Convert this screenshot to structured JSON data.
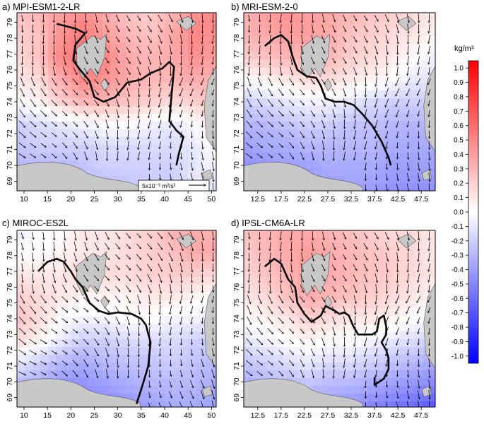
{
  "chart_data": {
    "type": "heatmap",
    "colorbar": {
      "unit_label": "kg/m³",
      "ticks": [
        "1.0",
        "0.9",
        "0.8",
        "0.7",
        "0.6",
        "0.5",
        "0.4",
        "0.3",
        "0.2",
        "0.1",
        "0.0",
        "-0.1",
        "-0.2",
        "-0.3",
        "-0.4",
        "-0.5",
        "-0.6",
        "-0.7",
        "-0.8",
        "-0.9",
        "-1.0"
      ],
      "range": [
        -1.05,
        1.05
      ],
      "colors": {
        "low": "#0000ff",
        "mid": "#ffffff",
        "high": "#ff0000"
      }
    },
    "panels": [
      {
        "title": "a)  MPI-ESM1-2-LR",
        "xticks": [
          "10",
          "15",
          "20",
          "25",
          "30",
          "35",
          "40",
          "45",
          "50"
        ],
        "yticks": [
          "79",
          "78",
          "77",
          "76",
          "75",
          "74",
          "73",
          "72",
          "71",
          "70",
          "69"
        ],
        "xlim": [
          8.5,
          51
        ],
        "ylim": [
          68.4,
          79.6
        ],
        "tilt": -0.25,
        "reference_vector": "5x10⁻³ m²/s²",
        "front_line": [
          [
            17,
            78.9
          ],
          [
            21,
            78.6
          ],
          [
            23,
            78.3
          ],
          [
            21,
            77.6
          ],
          [
            20.5,
            76.6
          ],
          [
            22,
            76
          ],
          [
            24,
            75.3
          ],
          [
            25,
            74.3
          ],
          [
            27,
            74
          ],
          [
            29.5,
            74.3
          ],
          [
            32,
            75.2
          ],
          [
            35,
            75.4
          ],
          [
            37,
            75.8
          ],
          [
            39.5,
            76.1
          ],
          [
            41,
            76.5
          ],
          [
            42,
            76.2
          ],
          [
            41.5,
            74.5
          ],
          [
            41,
            72.8
          ],
          [
            42.5,
            72.2
          ],
          [
            44,
            71.8
          ],
          [
            43,
            70.7
          ],
          [
            42.5,
            70
          ]
        ],
        "density_field": [
          [
            0.25,
            0.3,
            0.4,
            0.45,
            0.35,
            0.25,
            0.2,
            0.3,
            0.45,
            0.5
          ],
          [
            0.2,
            0.25,
            0.45,
            0.55,
            0.4,
            0.3,
            0.25,
            0.35,
            0.5,
            0.45
          ],
          [
            0.15,
            0.25,
            0.5,
            0.55,
            0.5,
            0.35,
            0.3,
            0.35,
            0.45,
            0.4
          ],
          [
            0.1,
            0.15,
            0.35,
            0.5,
            0.45,
            0.35,
            0.3,
            0.3,
            0.35,
            0.3
          ],
          [
            0.0,
            0.05,
            0.2,
            0.3,
            0.3,
            0.25,
            0.2,
            0.15,
            0.2,
            0.25
          ],
          [
            -0.2,
            -0.15,
            -0.1,
            -0.05,
            0.0,
            0.0,
            -0.05,
            -0.1,
            0.0,
            0.1
          ],
          [
            -0.25,
            -0.2,
            -0.2,
            -0.2,
            -0.15,
            -0.15,
            -0.15,
            -0.15,
            -0.1,
            0.0
          ],
          [
            -0.3,
            -0.3,
            -0.3,
            -0.25,
            -0.2,
            -0.2,
            -0.2,
            -0.2,
            -0.1,
            -0.05
          ],
          [
            -0.3,
            -0.35,
            -0.35,
            -0.3,
            -0.3,
            -0.25,
            -0.2,
            -0.2,
            -0.1,
            -0.1
          ]
        ]
      },
      {
        "title": "b)  MRI-ESM-2-0",
        "xticks": [
          "12.5",
          "17.5",
          "22.5",
          "27.5",
          "32.5",
          "37.5",
          "42.5",
          "47.5"
        ],
        "yticks": [
          "79",
          "78",
          "77",
          "76",
          "75",
          "74",
          "73",
          "72",
          "71",
          "70",
          "69"
        ],
        "xlim": [
          9.5,
          50.5
        ],
        "ylim": [
          68.4,
          79.6
        ],
        "tilt": -0.2,
        "front_line": [
          [
            14,
            77.5
          ],
          [
            16,
            78
          ],
          [
            17.5,
            78.2
          ],
          [
            19,
            77.8
          ],
          [
            20,
            76.8
          ],
          [
            21,
            76
          ],
          [
            23,
            75.6
          ],
          [
            25,
            75.5
          ],
          [
            26,
            75
          ],
          [
            27,
            74.2
          ],
          [
            29,
            74
          ],
          [
            31,
            74
          ],
          [
            33,
            73.8
          ],
          [
            35,
            73.2
          ],
          [
            37,
            72.5
          ],
          [
            38,
            72
          ],
          [
            39,
            71.5
          ],
          [
            40.5,
            70.5
          ],
          [
            41,
            70
          ]
        ],
        "density_field": [
          [
            0.3,
            0.4,
            0.45,
            0.4,
            0.35,
            0.3,
            0.25,
            0.2,
            0.15,
            0.1
          ],
          [
            0.3,
            0.35,
            0.4,
            0.4,
            0.35,
            0.25,
            0.2,
            0.15,
            0.1,
            0.05
          ],
          [
            0.2,
            0.25,
            0.3,
            0.3,
            0.3,
            0.2,
            0.15,
            0.1,
            0.0,
            -0.05
          ],
          [
            0.0,
            0.05,
            0.1,
            0.15,
            0.15,
            0.1,
            0.05,
            0.0,
            -0.1,
            -0.1
          ],
          [
            -0.2,
            -0.15,
            -0.1,
            -0.05,
            -0.05,
            -0.1,
            -0.15,
            -0.2,
            -0.2,
            -0.2
          ],
          [
            -0.3,
            -0.3,
            -0.25,
            -0.2,
            -0.2,
            -0.25,
            -0.25,
            -0.3,
            -0.3,
            -0.3
          ],
          [
            -0.4,
            -0.35,
            -0.35,
            -0.3,
            -0.3,
            -0.3,
            -0.3,
            -0.35,
            -0.35,
            -0.35
          ],
          [
            -0.45,
            -0.45,
            -0.4,
            -0.4,
            -0.35,
            -0.35,
            -0.35,
            -0.4,
            -0.4,
            -0.4
          ],
          [
            -0.5,
            -0.5,
            -0.45,
            -0.45,
            -0.4,
            -0.4,
            -0.4,
            -0.45,
            -0.45,
            -0.45
          ]
        ]
      },
      {
        "title": "c)  MIROC-ES2L",
        "xticks": [
          "10",
          "15",
          "20",
          "25",
          "30",
          "35",
          "40",
          "45",
          "50"
        ],
        "yticks": [
          "79",
          "78",
          "77",
          "76",
          "75",
          "74",
          "73",
          "72",
          "71",
          "70",
          "69"
        ],
        "xlim": [
          8.5,
          51
        ],
        "ylim": [
          68.4,
          79.6
        ],
        "tilt": -0.4,
        "front_line": [
          [
            13,
            77
          ],
          [
            15,
            77.6
          ],
          [
            17,
            77.8
          ],
          [
            18.5,
            77.6
          ],
          [
            20,
            77
          ],
          [
            21,
            76.5
          ],
          [
            22.5,
            76
          ],
          [
            24,
            75
          ],
          [
            26,
            74.5
          ],
          [
            28,
            74.3
          ],
          [
            30,
            74.4
          ],
          [
            33,
            74.3
          ],
          [
            35,
            74
          ],
          [
            36,
            73.6
          ],
          [
            37,
            72.5
          ],
          [
            36.5,
            71
          ],
          [
            35,
            69.5
          ],
          [
            34,
            68.6
          ]
        ],
        "density_field": [
          [
            -0.1,
            0.0,
            0.0,
            0.1,
            0.1,
            0.15,
            0.2,
            0.3,
            0.35,
            0.3
          ],
          [
            0.0,
            0.0,
            0.05,
            0.1,
            0.1,
            0.15,
            0.2,
            0.25,
            0.35,
            0.35
          ],
          [
            0.1,
            0.1,
            0.1,
            0.15,
            0.15,
            0.15,
            0.2,
            0.2,
            0.2,
            0.15
          ],
          [
            0.2,
            0.15,
            0.1,
            0.05,
            0.05,
            0.05,
            0.1,
            0.1,
            0.05,
            0.0
          ],
          [
            0.25,
            0.15,
            0.0,
            -0.05,
            -0.05,
            0.0,
            0.0,
            -0.05,
            -0.05,
            -0.1
          ],
          [
            0.15,
            0.05,
            -0.1,
            -0.2,
            -0.2,
            -0.15,
            -0.15,
            -0.15,
            -0.2,
            -0.2
          ],
          [
            -0.1,
            -0.2,
            -0.3,
            -0.35,
            -0.3,
            -0.25,
            -0.25,
            -0.2,
            -0.25,
            -0.3
          ],
          [
            -0.3,
            -0.35,
            -0.45,
            -0.45,
            -0.4,
            -0.35,
            -0.3,
            -0.3,
            -0.3,
            -0.35
          ],
          [
            -0.4,
            -0.45,
            -0.55,
            -0.55,
            -0.5,
            -0.45,
            -0.4,
            -0.35,
            -0.35,
            -0.4
          ]
        ]
      },
      {
        "title": "d)  IPSL-CM6A-LR",
        "xticks": [
          "12.5",
          "17.5",
          "22.5",
          "27.5",
          "32.5",
          "37.5",
          "42.5",
          "47.5"
        ],
        "yticks": [
          "79",
          "78",
          "77",
          "76",
          "75",
          "74",
          "73",
          "72",
          "71",
          "70",
          "69"
        ],
        "xlim": [
          9.5,
          50.5
        ],
        "ylim": [
          68.4,
          79.6
        ],
        "tilt": -0.2,
        "front_line": [
          [
            14,
            77.3
          ],
          [
            16,
            77.8
          ],
          [
            17.5,
            77.5
          ],
          [
            19,
            76.5
          ],
          [
            20.5,
            76
          ],
          [
            21,
            75
          ],
          [
            22.5,
            74.3
          ],
          [
            24,
            73.8
          ],
          [
            26,
            74.2
          ],
          [
            27,
            74.8
          ],
          [
            29,
            74.5
          ],
          [
            30,
            74.3
          ],
          [
            31,
            74.4
          ],
          [
            32,
            74.2
          ],
          [
            33,
            73.5
          ],
          [
            34,
            73
          ],
          [
            36,
            73
          ],
          [
            37,
            73
          ],
          [
            38,
            73.2
          ],
          [
            38.5,
            74
          ],
          [
            39.5,
            74.2
          ],
          [
            40,
            73.5
          ],
          [
            40,
            73
          ],
          [
            39,
            72.5
          ],
          [
            40,
            72
          ],
          [
            40.5,
            71.5
          ],
          [
            40.5,
            70.8
          ],
          [
            39.5,
            70.2
          ],
          [
            38.5,
            70
          ],
          [
            37.5,
            69.8
          ],
          [
            37.5,
            70.3
          ]
        ],
        "density_field": [
          [
            0.25,
            0.3,
            0.35,
            0.35,
            0.3,
            0.25,
            0.2,
            0.15,
            0.15,
            0.1
          ],
          [
            0.2,
            0.3,
            0.35,
            0.4,
            0.35,
            0.3,
            0.25,
            0.2,
            0.15,
            0.1
          ],
          [
            0.15,
            0.25,
            0.3,
            0.4,
            0.35,
            0.3,
            0.25,
            0.2,
            0.15,
            0.1
          ],
          [
            0.1,
            0.15,
            0.25,
            0.35,
            0.3,
            0.25,
            0.2,
            0.15,
            0.1,
            0.05
          ],
          [
            0.0,
            0.05,
            0.1,
            0.2,
            0.15,
            0.1,
            0.1,
            0.05,
            0.0,
            -0.05
          ],
          [
            -0.1,
            -0.05,
            0.0,
            0.05,
            0.0,
            0.0,
            -0.05,
            -0.1,
            -0.15,
            -0.2
          ],
          [
            -0.25,
            -0.2,
            -0.15,
            -0.1,
            -0.15,
            -0.15,
            -0.2,
            -0.25,
            -0.3,
            -0.35
          ],
          [
            -0.35,
            -0.3,
            -0.3,
            -0.25,
            -0.3,
            -0.3,
            -0.35,
            -0.4,
            -0.45,
            -0.5
          ],
          [
            -0.45,
            -0.4,
            -0.35,
            -0.35,
            -0.4,
            -0.45,
            -0.5,
            -0.55,
            -0.6,
            -0.7
          ]
        ]
      }
    ]
  }
}
